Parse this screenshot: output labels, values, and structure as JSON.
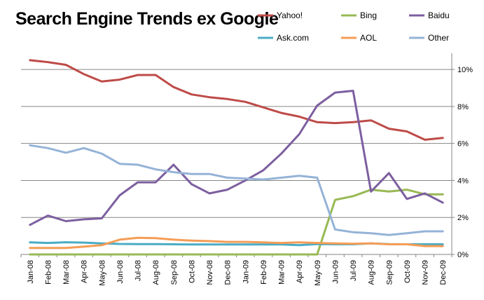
{
  "chart_data": {
    "type": "line",
    "title": "Search Engine Trends ex Google",
    "categories": [
      "Jan-08",
      "Feb-08",
      "Mar-08",
      "Apr-08",
      "May-08",
      "Jun-08",
      "Jul-08",
      "Aug-08",
      "Sep-08",
      "Oct-08",
      "Nov-08",
      "Dec-08",
      "Jan-09",
      "Feb-09",
      "Mar-09",
      "Apr-09",
      "May-09",
      "Jun-09",
      "Jul-09",
      "Aug-09",
      "Sep-09",
      "Oct-09",
      "Nov-09",
      "Dec-09"
    ],
    "y_ticks": [
      "0%",
      "2%",
      "4%",
      "6%",
      "8%",
      "10%"
    ],
    "ylim": [
      0,
      10.8
    ],
    "y_unit": "%",
    "grid": true,
    "legend_position": "top-right",
    "series": [
      {
        "name": "Yahoo!",
        "color": "#be4b48",
        "values": [
          10.5,
          10.4,
          10.25,
          9.75,
          9.35,
          9.45,
          9.7,
          9.7,
          9.05,
          8.65,
          8.5,
          8.4,
          8.25,
          7.95,
          7.65,
          7.45,
          7.15,
          7.1,
          7.15,
          7.25,
          6.8,
          6.65,
          6.2,
          6.3
        ]
      },
      {
        "name": "Bing",
        "color": "#98b954",
        "values": [
          0,
          0,
          0,
          0,
          0,
          0,
          0,
          0,
          0,
          0,
          0,
          0,
          0,
          0,
          0,
          0,
          0,
          2.95,
          3.15,
          3.5,
          3.4,
          3.5,
          3.25,
          3.25
        ]
      },
      {
        "name": "Baidu",
        "color": "#7d5fa0",
        "values": [
          1.6,
          2.1,
          1.8,
          1.9,
          1.95,
          3.2,
          3.9,
          3.9,
          4.85,
          3.8,
          3.3,
          3.5,
          4.0,
          4.55,
          5.45,
          6.5,
          8.05,
          8.75,
          8.85,
          3.4,
          4.4,
          3.0,
          3.3,
          2.8
        ]
      },
      {
        "name": "Ask.com",
        "color": "#4aacc5",
        "values": [
          0.65,
          0.62,
          0.66,
          0.64,
          0.6,
          0.57,
          0.56,
          0.56,
          0.55,
          0.54,
          0.54,
          0.54,
          0.54,
          0.54,
          0.54,
          0.5,
          0.56,
          0.55,
          0.55,
          0.6,
          0.56,
          0.55,
          0.55,
          0.55
        ]
      },
      {
        "name": "AOL",
        "color": "#f59d56",
        "values": [
          0.35,
          0.35,
          0.35,
          0.42,
          0.5,
          0.8,
          0.9,
          0.88,
          0.8,
          0.75,
          0.72,
          0.68,
          0.68,
          0.65,
          0.62,
          0.65,
          0.62,
          0.6,
          0.58,
          0.6,
          0.55,
          0.55,
          0.45,
          0.45
        ]
      },
      {
        "name": "Other",
        "color": "#95b3d7",
        "values": [
          5.9,
          5.75,
          5.5,
          5.75,
          5.45,
          4.9,
          4.85,
          4.6,
          4.45,
          4.35,
          4.35,
          4.15,
          4.1,
          4.05,
          4.15,
          4.25,
          4.15,
          1.35,
          1.2,
          1.15,
          1.05,
          1.15,
          1.25,
          1.25
        ]
      }
    ]
  }
}
